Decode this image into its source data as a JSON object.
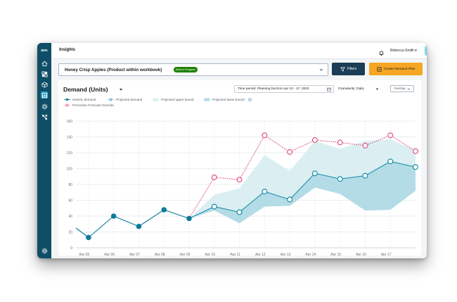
{
  "app": {
    "logo_text": "aws",
    "title": "Insights",
    "user_name": "Rebecca Smith",
    "avatar_initials": "RS"
  },
  "selector": {
    "product_name": "Honey Crisp Apples (Product within workbook)",
    "status_badge": "Work in Progress"
  },
  "buttons": {
    "filters_label": "Filters",
    "create_plan_label": "Create Demand Plan"
  },
  "card": {
    "title": "Demand (Units)",
    "time_period": "Time period: Planning horizon Apr 10 - 17, 2022",
    "granularity": "Granularity: Daily",
    "overlay_label": "Overlay"
  },
  "legend": {
    "historic": "Historic demand",
    "projected": "Projected demand",
    "upper": "Projected upper bound",
    "lower": "Projected lower bound",
    "promotion": "Promotion Forecast Override"
  },
  "colors": {
    "historic": "#0f7a99",
    "projected": "#1a8fa8",
    "band_upper": "#dbeff3",
    "band_lower": "#b4dce6",
    "promotion": "#e0457b",
    "sidebar": "#0f4e66",
    "create_button": "#f5a623",
    "filters_button": "#1c3d55"
  },
  "icons": {
    "sidebar": [
      "home-icon",
      "products-icon",
      "box-icon",
      "insights-icon",
      "settings-gear-icon",
      "network-icon",
      "footer-settings-icon"
    ],
    "topbar": [
      "bell-icon"
    ],
    "buttons": [
      "filter-icon",
      "plan-icon"
    ]
  },
  "chart_data": {
    "type": "line",
    "title": "Demand (Units)",
    "xlabel": "",
    "ylabel": "",
    "ylim": [
      0,
      160
    ],
    "yticks": [
      "0",
      "20",
      "40",
      "60",
      "80",
      "100",
      "120",
      "140",
      "160"
    ],
    "categories": [
      "Apr 05",
      "Apr 06",
      "Apr 07",
      "Apr 08",
      "Apr 09",
      "Apr 10",
      "Apr 11",
      "Apr 12",
      "Apr 13",
      "Apr 14",
      "Apr 15",
      "Apr 16",
      "Apr 17"
    ],
    "x_values": [
      4.5,
      5,
      6,
      7,
      8,
      9,
      10,
      11,
      12,
      13,
      14,
      15,
      16,
      17,
      18
    ],
    "grid": true,
    "series": [
      {
        "name": "Historic demand",
        "x": [
          4.5,
          5,
          6,
          7,
          8,
          9
        ],
        "values": [
          25,
          13,
          40,
          27,
          48,
          37
        ]
      },
      {
        "name": "Projected demand",
        "x": [
          9,
          10,
          11,
          12,
          13,
          14,
          15,
          16,
          17,
          18
        ],
        "values": [
          37,
          52,
          45,
          71,
          61,
          94,
          87,
          91,
          109,
          102
        ]
      },
      {
        "name": "Projected upper bound",
        "x": [
          9,
          10,
          11,
          12,
          13,
          14,
          15,
          16,
          17,
          18
        ],
        "values": [
          37,
          67,
          75,
          117,
          97,
          135,
          125,
          135,
          137,
          123
        ]
      },
      {
        "name": "Projected lower bound",
        "x": [
          9,
          10,
          11,
          12,
          13,
          14,
          15,
          16,
          17,
          18
        ],
        "values": [
          37,
          47,
          31,
          52,
          53,
          76,
          68,
          47,
          48,
          72
        ]
      },
      {
        "name": "Promotion Forecast Override",
        "x": [
          9,
          10,
          11,
          12,
          13,
          14,
          15,
          16,
          17,
          18
        ],
        "values": [
          37,
          89,
          86,
          142,
          121,
          136,
          133,
          129,
          142,
          122
        ]
      }
    ]
  }
}
